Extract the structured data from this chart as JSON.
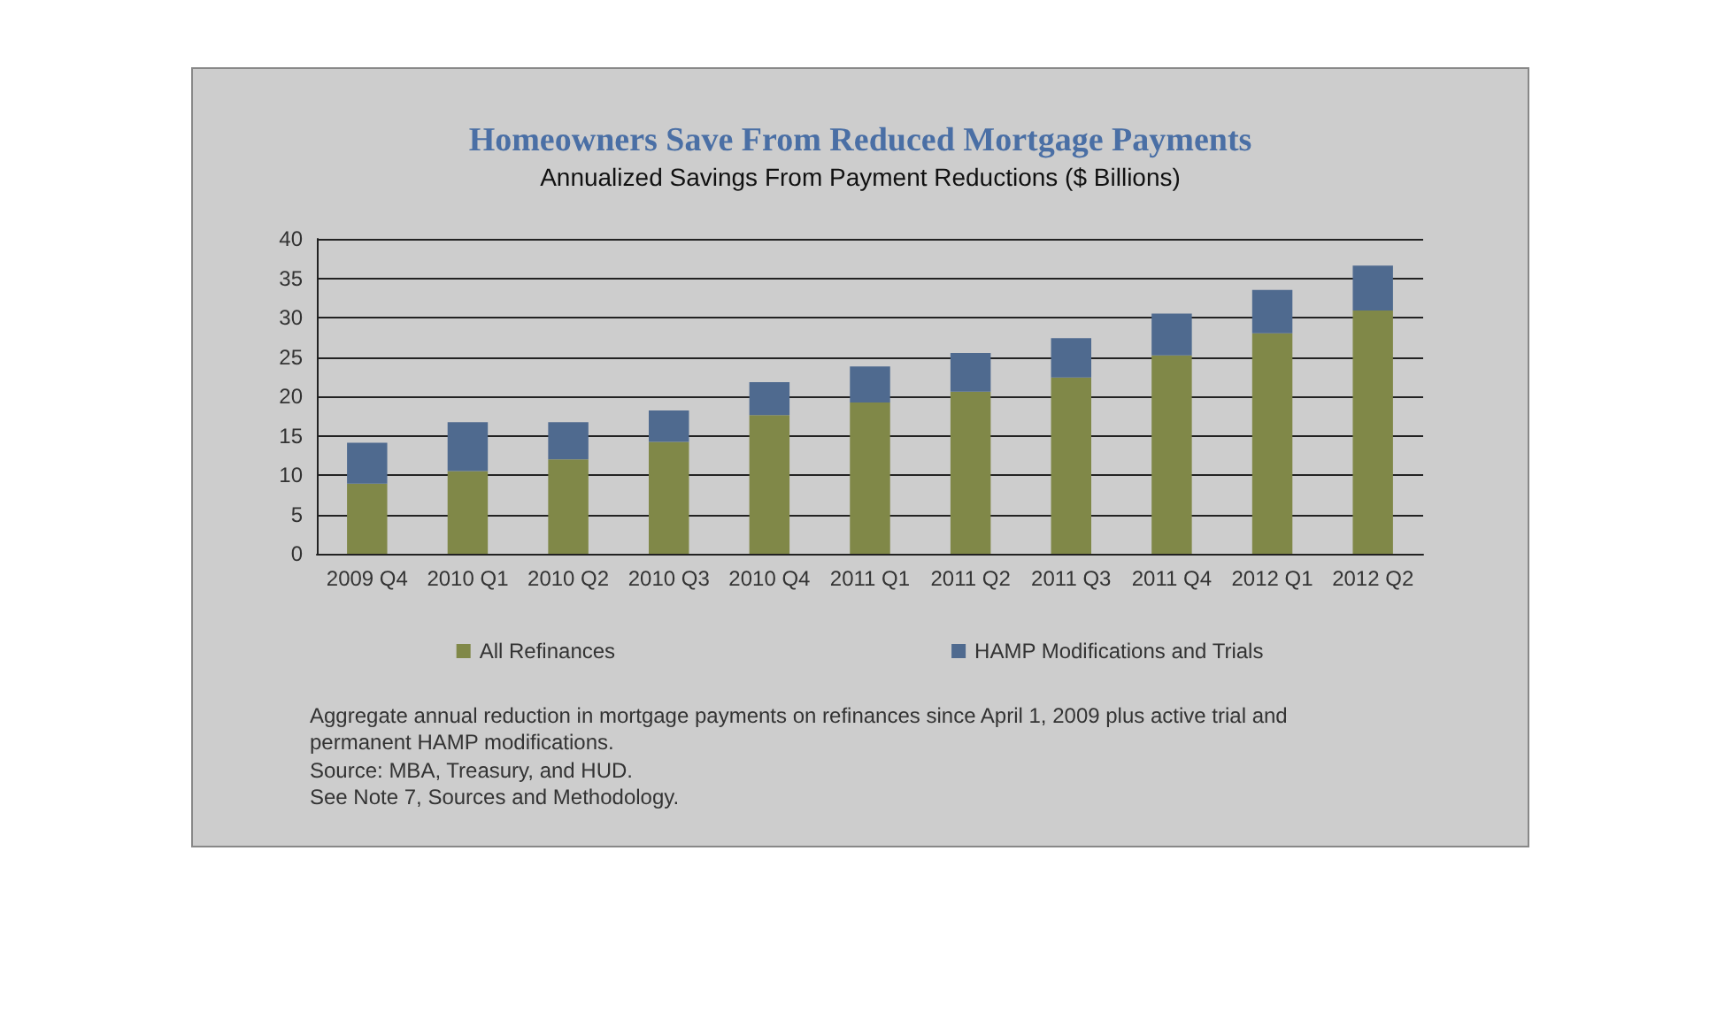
{
  "chart_data": {
    "type": "bar",
    "stacked": true,
    "title": "Homeowners Save From Reduced Mortgage Payments",
    "subtitle": "Annualized Savings From Payment Reductions ($ Billions)",
    "categories": [
      "2009 Q4",
      "2010 Q1",
      "2010 Q2",
      "2010 Q3",
      "2010 Q4",
      "2011 Q1",
      "2011 Q2",
      "2011 Q3",
      "2011 Q4",
      "2012 Q1",
      "2012 Q2"
    ],
    "series": [
      {
        "name": "All Refinances",
        "color": "#808848",
        "values": [
          8.9,
          10.5,
          12.0,
          14.2,
          17.6,
          19.2,
          20.6,
          22.4,
          25.2,
          28.0,
          30.9
        ]
      },
      {
        "name": "HAMP Modifications and Trials",
        "color": "#4f6a8f",
        "values": [
          5.2,
          6.2,
          4.7,
          4.0,
          4.2,
          4.6,
          4.9,
          5.0,
          5.3,
          5.5,
          5.7
        ]
      }
    ],
    "ylim": [
      0,
      40
    ],
    "yticks": [
      0,
      5,
      10,
      15,
      20,
      25,
      30,
      35,
      40
    ],
    "grid": "y",
    "legend": "bottom",
    "annotations": [
      "Aggregate annual reduction in mortgage payments on refinances since April 1, 2009 plus active trial and permanent HAMP modifications.",
      "Source: MBA, Treasury, and HUD.",
      "See Note 7, Sources and Methodology."
    ]
  }
}
